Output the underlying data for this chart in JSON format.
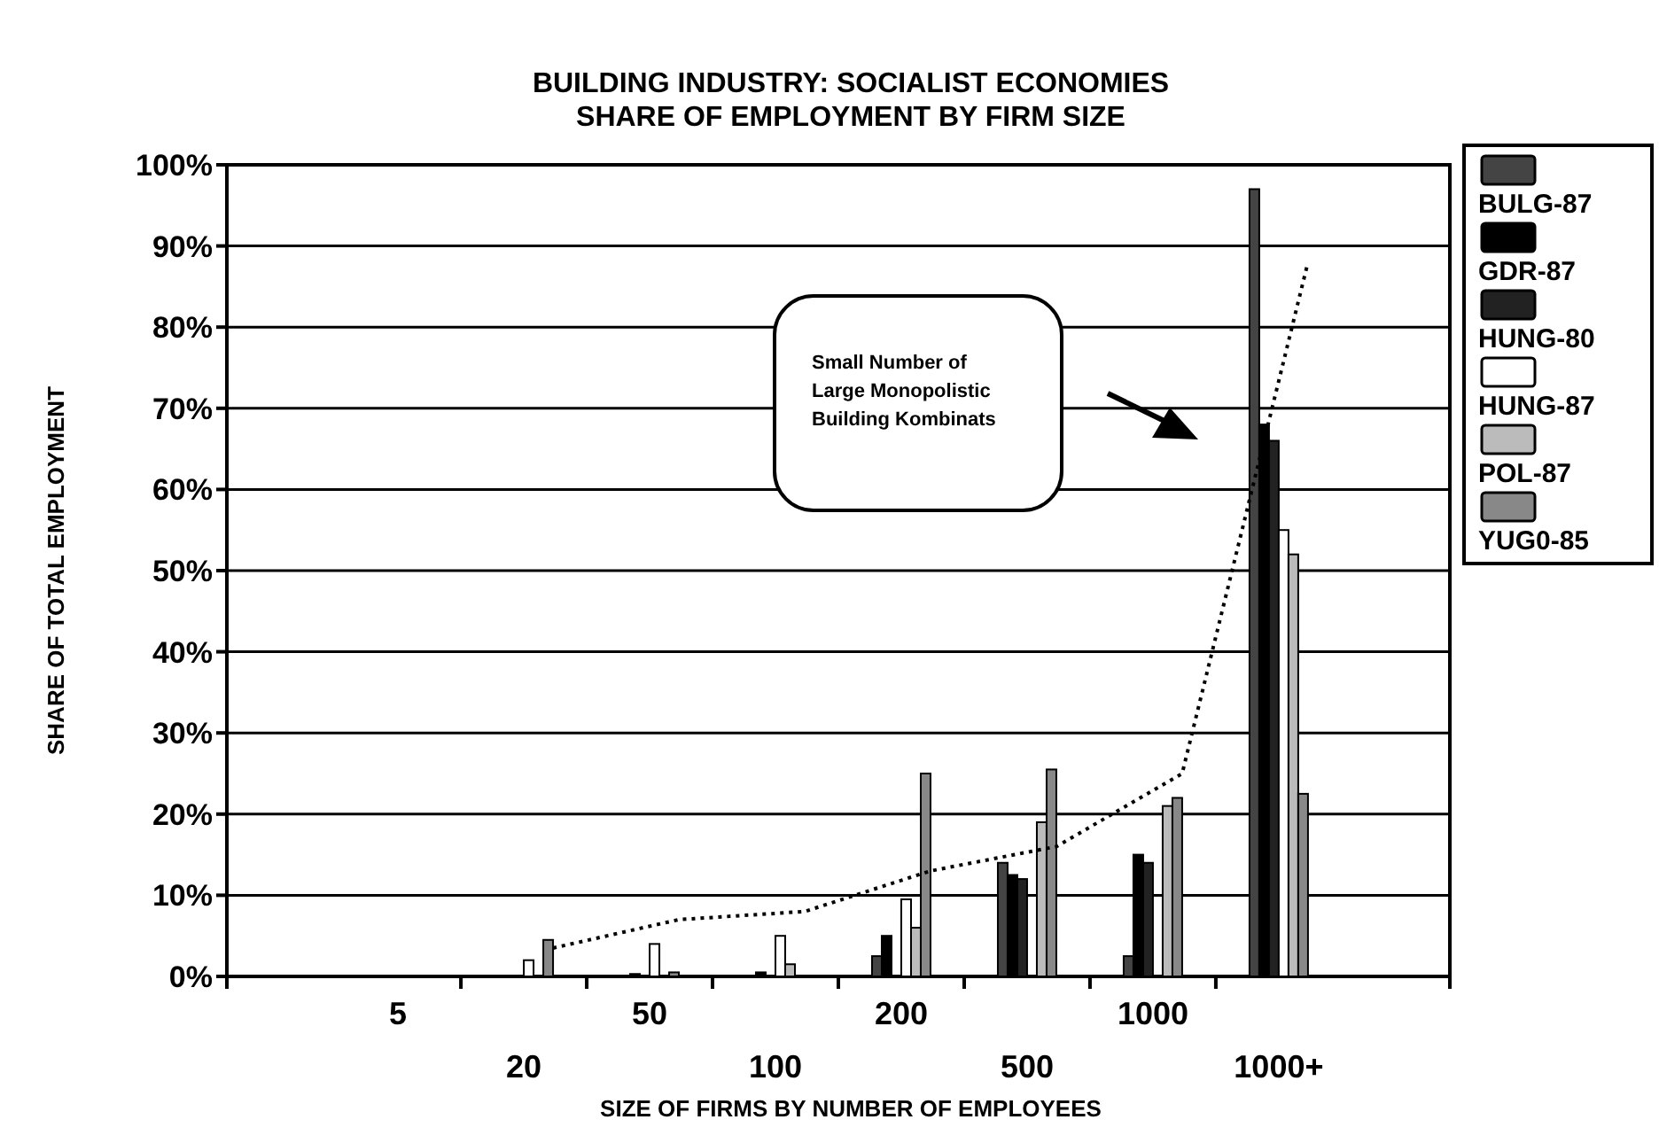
{
  "chart_data": {
    "type": "bar",
    "title": "BUILDING INDUSTRY: SOCIALIST ECONOMIES",
    "subtitle": "SHARE OF EMPLOYMENT BY FIRM SIZE",
    "xlabel": "SIZE OF FIRMS BY NUMBER OF EMPLOYEES",
    "ylabel": "SHARE OF TOTAL EMPLOYMENT",
    "categories": [
      "5",
      "20",
      "50",
      "100",
      "200",
      "500",
      "1000",
      "1000+"
    ],
    "ylim": [
      0,
      100
    ],
    "yticks": [
      {
        "value": 0,
        "label": "0%"
      },
      {
        "value": 10,
        "label": "10%"
      },
      {
        "value": 20,
        "label": "20%"
      },
      {
        "value": 30,
        "label": "30%"
      },
      {
        "value": 40,
        "label": "40%"
      },
      {
        "value": 50,
        "label": "50%"
      },
      {
        "value": 60,
        "label": "60%"
      },
      {
        "value": 70,
        "label": "70%"
      },
      {
        "value": 80,
        "label": "80%"
      },
      {
        "value": 90,
        "label": "90%"
      },
      {
        "value": 100,
        "label": "100%"
      }
    ],
    "grid": "y",
    "legend": "right",
    "annotations": [
      "Small Number of Large Monopolistic Building Kombinats"
    ],
    "series": [
      {
        "name": "BULG-87",
        "color": "#444444",
        "values": [
          null,
          null,
          null,
          null,
          2.5,
          14,
          2.5,
          97
        ]
      },
      {
        "name": "GDR-87",
        "color": "#000000",
        "values": [
          null,
          null,
          0.3,
          0.5,
          5,
          12.5,
          15,
          68
        ]
      },
      {
        "name": "HUNG-80",
        "color": "#222222",
        "values": [
          null,
          null,
          null,
          null,
          null,
          12,
          14,
          66
        ]
      },
      {
        "name": "HUNG-87",
        "color": "#ffffff",
        "values": [
          null,
          2,
          4,
          5,
          9.5,
          null,
          null,
          55
        ]
      },
      {
        "name": "POL-87",
        "color": "#bbbbbb",
        "values": [
          null,
          null,
          null,
          1.5,
          6,
          19,
          21,
          52
        ]
      },
      {
        "name": "YUG0-85",
        "color": "#888888",
        "values": [
          null,
          4.5,
          0.5,
          null,
          25,
          25.5,
          22,
          22.5
        ]
      },
      {
        "type": "line",
        "color": "#000000",
        "line_style": "dotted",
        "marker": "none",
        "values": [
          null,
          3.5,
          7,
          8,
          13,
          16,
          25,
          88
        ]
      }
    ]
  }
}
